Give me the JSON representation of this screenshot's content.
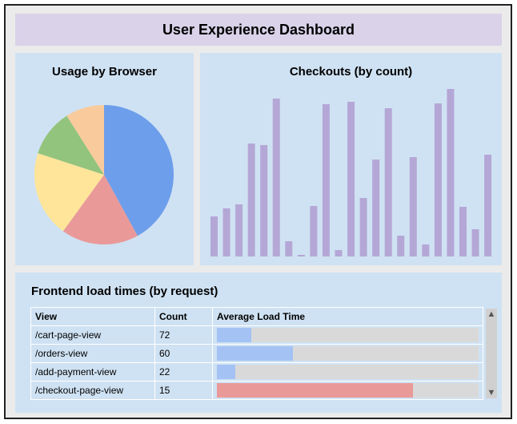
{
  "header": {
    "title": "User Experience Dashboard"
  },
  "usage": {
    "title": "Usage by Browser"
  },
  "checkouts": {
    "title": "Checkouts (by count)"
  },
  "loads": {
    "title": "Frontend load times (by request)",
    "columns": [
      "View",
      "Count",
      "Average Load Time"
    ],
    "rows": [
      {
        "view": "/cart-page-view",
        "count": "72",
        "load_fraction": 0.13,
        "color": "#a4c2f4"
      },
      {
        "view": "/orders-view",
        "count": "60",
        "load_fraction": 0.29,
        "color": "#a4c2f4"
      },
      {
        "view": "/add-payment-view",
        "count": "22",
        "load_fraction": 0.07,
        "color": "#a4c2f4"
      },
      {
        "view": "/checkout-page-view",
        "count": "15",
        "load_fraction": 0.75,
        "color": "#ea9999"
      }
    ]
  },
  "chart_data": [
    {
      "type": "pie",
      "title": "Usage by Browser",
      "values": [
        42,
        18,
        20,
        11,
        9
      ],
      "colors": [
        "#6d9eeb",
        "#ea9999",
        "#ffe599",
        "#93c47d",
        "#f9cb9c"
      ]
    },
    {
      "type": "bar",
      "title": "Checkouts (by count)",
      "values": [
        50,
        60,
        65,
        141,
        139,
        197,
        19,
        2,
        63,
        190,
        8,
        193,
        73,
        121,
        185,
        26,
        124,
        15,
        191,
        209,
        62,
        34,
        127
      ],
      "ylim": [
        0,
        210
      ],
      "color": "#b4a7d6"
    }
  ]
}
